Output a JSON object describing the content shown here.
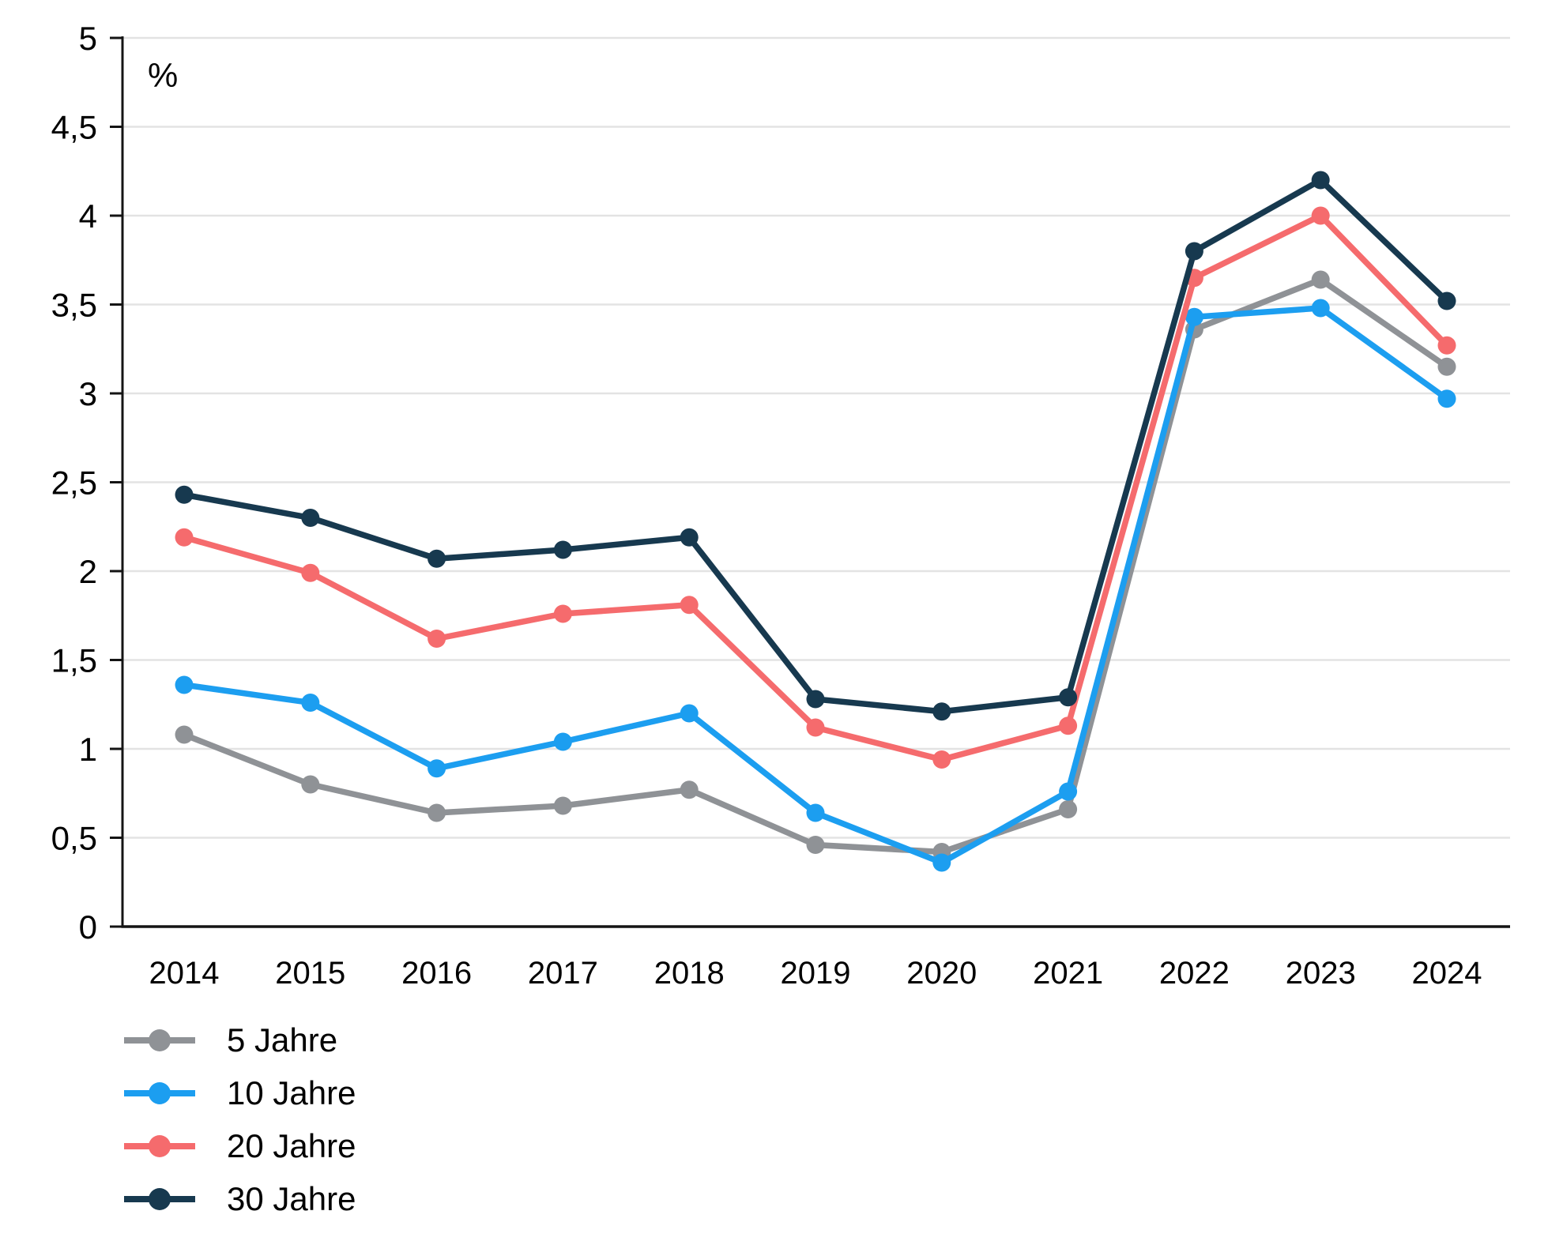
{
  "chart_data": {
    "type": "line",
    "title": "",
    "unit_label": "%",
    "xlabel": "",
    "ylabel": "%",
    "x_categories": [
      "2014",
      "2015",
      "2016",
      "2017",
      "2018",
      "2019",
      "2020",
      "2021",
      "2022",
      "2023",
      "2024"
    ],
    "y_ticks": [
      {
        "value": 0,
        "label": "0"
      },
      {
        "value": 0.5,
        "label": "0,5"
      },
      {
        "value": 1,
        "label": "1"
      },
      {
        "value": 1.5,
        "label": "1,5"
      },
      {
        "value": 2,
        "label": "2"
      },
      {
        "value": 2.5,
        "label": "2,5"
      },
      {
        "value": 3,
        "label": "3"
      },
      {
        "value": 3.5,
        "label": "3,5"
      },
      {
        "value": 4,
        "label": "4"
      },
      {
        "value": 4.5,
        "label": "4,5"
      },
      {
        "value": 5,
        "label": "5"
      }
    ],
    "ylim": [
      0,
      5
    ],
    "grid": "horizontal",
    "legend_position": "bottom-left",
    "series": [
      {
        "name": "5 Jahre",
        "color": "#8f9296",
        "values": [
          1.08,
          0.8,
          0.64,
          0.68,
          0.77,
          0.46,
          0.42,
          0.66,
          3.36,
          3.64,
          3.15
        ]
      },
      {
        "name": "10 Jahre",
        "color": "#1c9ef0",
        "values": [
          1.36,
          1.26,
          0.89,
          1.04,
          1.2,
          0.64,
          0.36,
          0.76,
          3.43,
          3.48,
          2.97
        ]
      },
      {
        "name": "20 Jahre",
        "color": "#f56b6d",
        "values": [
          2.19,
          1.99,
          1.62,
          1.76,
          1.81,
          1.12,
          0.94,
          1.13,
          3.65,
          4.0,
          3.27
        ]
      },
      {
        "name": "30 Jahre",
        "color": "#17394f",
        "values": [
          2.43,
          2.3,
          2.07,
          2.12,
          2.19,
          1.28,
          1.21,
          1.29,
          3.8,
          4.2,
          3.52
        ]
      }
    ],
    "colors": {
      "grid": "#e3e3e3",
      "axis": "#141414",
      "text": "#000000"
    }
  }
}
